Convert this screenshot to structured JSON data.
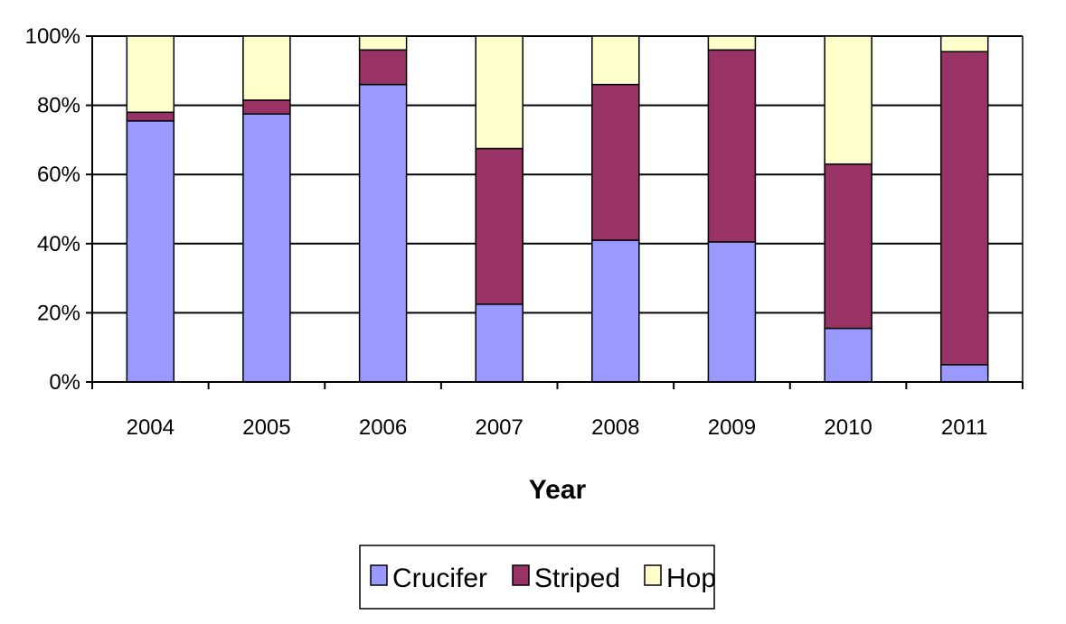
{
  "chart_data": {
    "type": "bar",
    "stacked": true,
    "normalized": "percent",
    "categories": [
      "2004",
      "2005",
      "2006",
      "2007",
      "2008",
      "2009",
      "2010",
      "2011"
    ],
    "series": [
      {
        "name": "Crucifer",
        "color": "#9999ff",
        "values": [
          75.5,
          77.5,
          86,
          22.5,
          41,
          40.5,
          15.5,
          5
        ]
      },
      {
        "name": "Striped",
        "color": "#993366",
        "values": [
          2.5,
          4,
          10,
          45,
          45,
          55.5,
          47.5,
          90.5
        ]
      },
      {
        "name": "Hop",
        "color": "#ffffcc",
        "values": [
          22,
          18.5,
          4,
          32.5,
          14,
          4,
          37,
          4.5
        ]
      }
    ],
    "xlabel": "Year",
    "ylabel": "",
    "ylim": [
      0,
      100
    ],
    "yticks": [
      "0%",
      "20%",
      "40%",
      "60%",
      "80%",
      "100%"
    ],
    "grid": true,
    "legend_position": "bottom"
  }
}
